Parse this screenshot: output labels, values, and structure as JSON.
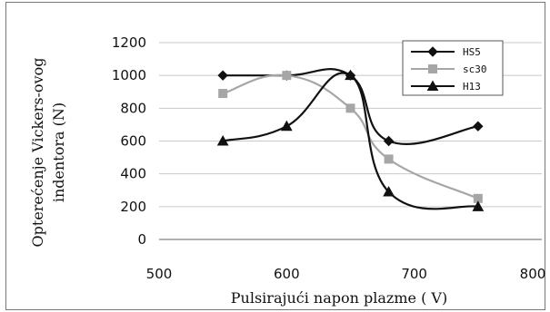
{
  "chart_data": {
    "type": "line",
    "title": "",
    "xlabel": "Pulsirajući napon plazme  ( V)",
    "ylabel_line1": "Opterećenje Vickers-ovog",
    "ylabel_line2": "indentora  (N)",
    "xlim": [
      500,
      800
    ],
    "ylim": [
      0,
      1200
    ],
    "x_ticks": [
      500,
      600,
      700,
      800
    ],
    "y_ticks": [
      0,
      200,
      400,
      600,
      800,
      1000,
      1200
    ],
    "x_tick_labels": [
      "500",
      "600",
      "700",
      "800"
    ],
    "y_tick_labels": [
      "0",
      "200",
      "400",
      "600",
      "800",
      "1000",
      "1200"
    ],
    "grid": true,
    "legend_position": "top-right",
    "series": [
      {
        "name": "HS5",
        "legend_label": "HS5",
        "color": "#111111",
        "marker": "diamond",
        "x": [
          550,
          600,
          650,
          680,
          750
        ],
        "y": [
          1000,
          1000,
          1000,
          600,
          690
        ]
      },
      {
        "name": "sc30",
        "legend_label": "sc30",
        "color": "#a6a6a6",
        "marker": "square",
        "x": [
          550,
          600,
          650,
          680,
          750
        ],
        "y": [
          890,
          1000,
          800,
          490,
          250
        ]
      },
      {
        "name": "H13",
        "legend_label": "H13",
        "color": "#111111",
        "marker": "triangle",
        "x": [
          550,
          600,
          650,
          680,
          750
        ],
        "y": [
          600,
          690,
          1000,
          290,
          200
        ]
      }
    ]
  }
}
